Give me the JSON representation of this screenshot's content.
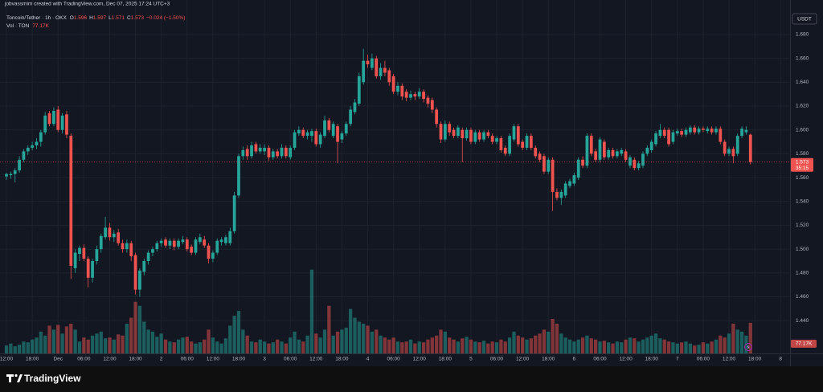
{
  "header": {
    "credit": "jobvassmim created with TradingView.com, Dec 07, 2025 17:24 UTC+3"
  },
  "chart_data": {
    "type": "candlestick",
    "symbol": "Toncoin/Tether · 1h · OKX",
    "legend": {
      "open_key": "O",
      "open": "1.596",
      "high_key": "H",
      "high": "1.597",
      "low_key": "L",
      "low": "1.571",
      "close_key": "C",
      "close": "1.573",
      "change": "−0.024 (−1.50%)"
    },
    "volume_legend": {
      "name": "Vol · TON",
      "value": "77.17K"
    },
    "currency": "USDT",
    "up_color": "#26a69a",
    "down_color": "#ef5350",
    "ohlc": [
      [
        1.561,
        1.564,
        1.558,
        1.563
      ],
      [
        1.562,
        1.565,
        1.559,
        1.563
      ],
      [
        1.563,
        1.568,
        1.556,
        1.566
      ],
      [
        1.566,
        1.578,
        1.564,
        1.575
      ],
      [
        1.575,
        1.584,
        1.573,
        1.582
      ],
      [
        1.582,
        1.587,
        1.579,
        1.585
      ],
      [
        1.585,
        1.59,
        1.583,
        1.587
      ],
      [
        1.587,
        1.593,
        1.584,
        1.59
      ],
      [
        1.59,
        1.6,
        1.586,
        1.598
      ],
      [
        1.598,
        1.615,
        1.596,
        1.612
      ],
      [
        1.614,
        1.616,
        1.603,
        1.605
      ],
      [
        1.605,
        1.619,
        1.603,
        1.616
      ],
      [
        1.617,
        1.62,
        1.598,
        1.6
      ],
      [
        1.6,
        1.614,
        1.597,
        1.612
      ],
      [
        1.613,
        1.616,
        1.593,
        1.596
      ],
      [
        1.595,
        1.597,
        1.475,
        1.486
      ],
      [
        1.484,
        1.5,
        1.48,
        1.497
      ],
      [
        1.496,
        1.503,
        1.49,
        1.501
      ],
      [
        1.501,
        1.504,
        1.49,
        1.492
      ],
      [
        1.492,
        1.494,
        1.468,
        1.476
      ],
      [
        1.476,
        1.492,
        1.472,
        1.49
      ],
      [
        1.49,
        1.503,
        1.487,
        1.5
      ],
      [
        1.5,
        1.513,
        1.497,
        1.511
      ],
      [
        1.51,
        1.527,
        1.508,
        1.518
      ],
      [
        1.518,
        1.522,
        1.507,
        1.51
      ],
      [
        1.51,
        1.516,
        1.506,
        1.513
      ],
      [
        1.514,
        1.517,
        1.503,
        1.505
      ],
      [
        1.505,
        1.508,
        1.497,
        1.5
      ],
      [
        1.5,
        1.508,
        1.497,
        1.505
      ],
      [
        1.505,
        1.507,
        1.49,
        1.494
      ],
      [
        1.495,
        1.497,
        1.462,
        1.466
      ],
      [
        1.466,
        1.484,
        1.46,
        1.482
      ],
      [
        1.481,
        1.492,
        1.478,
        1.49
      ],
      [
        1.49,
        1.499,
        1.487,
        1.497
      ],
      [
        1.497,
        1.502,
        1.494,
        1.5
      ],
      [
        1.5,
        1.507,
        1.498,
        1.505
      ],
      [
        1.505,
        1.509,
        1.502,
        1.507
      ],
      [
        1.508,
        1.51,
        1.501,
        1.503
      ],
      [
        1.503,
        1.509,
        1.5,
        1.507
      ],
      [
        1.507,
        1.509,
        1.499,
        1.502
      ],
      [
        1.502,
        1.509,
        1.5,
        1.507
      ],
      [
        1.506,
        1.511,
        1.504,
        1.508
      ],
      [
        1.508,
        1.51,
        1.498,
        1.5
      ],
      [
        1.502,
        1.504,
        1.495,
        1.497
      ],
      [
        1.497,
        1.51,
        1.495,
        1.508
      ],
      [
        1.506,
        1.513,
        1.504,
        1.51
      ],
      [
        1.508,
        1.511,
        1.501,
        1.503
      ],
      [
        1.503,
        1.505,
        1.488,
        1.492
      ],
      [
        1.492,
        1.499,
        1.489,
        1.497
      ],
      [
        1.497,
        1.509,
        1.495,
        1.507
      ],
      [
        1.506,
        1.51,
        1.503,
        1.508
      ],
      [
        1.505,
        1.512,
        1.503,
        1.51
      ],
      [
        1.505,
        1.518,
        1.503,
        1.515
      ],
      [
        1.515,
        1.548,
        1.513,
        1.545
      ],
      [
        1.545,
        1.58,
        1.543,
        1.578
      ],
      [
        1.578,
        1.586,
        1.575,
        1.583
      ],
      [
        1.584,
        1.587,
        1.575,
        1.578
      ],
      [
        1.578,
        1.59,
        1.576,
        1.587
      ],
      [
        1.588,
        1.59,
        1.58,
        1.582
      ],
      [
        1.582,
        1.588,
        1.58,
        1.585
      ],
      [
        1.582,
        1.588,
        1.579,
        1.585
      ],
      [
        1.585,
        1.587,
        1.574,
        1.577
      ],
      [
        1.577,
        1.584,
        1.575,
        1.582
      ],
      [
        1.582,
        1.584,
        1.576,
        1.578
      ],
      [
        1.578,
        1.588,
        1.576,
        1.585
      ],
      [
        1.585,
        1.587,
        1.576,
        1.578
      ],
      [
        1.577,
        1.587,
        1.575,
        1.585
      ],
      [
        1.585,
        1.6,
        1.583,
        1.598
      ],
      [
        1.597,
        1.603,
        1.595,
        1.6
      ],
      [
        1.6,
        1.602,
        1.593,
        1.595
      ],
      [
        1.595,
        1.6,
        1.592,
        1.598
      ],
      [
        1.595,
        1.601,
        1.59,
        1.599
      ],
      [
        1.599,
        1.601,
        1.586,
        1.588
      ],
      [
        1.588,
        1.598,
        1.585,
        1.596
      ],
      [
        1.595,
        1.612,
        1.593,
        1.608
      ],
      [
        1.608,
        1.61,
        1.598,
        1.6
      ],
      [
        1.595,
        1.607,
        1.593,
        1.605
      ],
      [
        1.603,
        1.605,
        1.572,
        1.59
      ],
      [
        1.592,
        1.599,
        1.589,
        1.597
      ],
      [
        1.597,
        1.607,
        1.595,
        1.605
      ],
      [
        1.605,
        1.62,
        1.603,
        1.617
      ],
      [
        1.615,
        1.626,
        1.613,
        1.623
      ],
      [
        1.622,
        1.648,
        1.62,
        1.645
      ],
      [
        1.64,
        1.668,
        1.638,
        1.658
      ],
      [
        1.658,
        1.663,
        1.652,
        1.655
      ],
      [
        1.652,
        1.664,
        1.65,
        1.66
      ],
      [
        1.66,
        1.662,
        1.643,
        1.645
      ],
      [
        1.645,
        1.656,
        1.642,
        1.652
      ],
      [
        1.652,
        1.658,
        1.645,
        1.648
      ],
      [
        1.65,
        1.652,
        1.637,
        1.64
      ],
      [
        1.645,
        1.647,
        1.63,
        1.632
      ],
      [
        1.632,
        1.64,
        1.629,
        1.637
      ],
      [
        1.637,
        1.639,
        1.625,
        1.628
      ],
      [
        1.632,
        1.634,
        1.624,
        1.627
      ],
      [
        1.627,
        1.633,
        1.625,
        1.63
      ],
      [
        1.63,
        1.632,
        1.625,
        1.628
      ],
      [
        1.628,
        1.635,
        1.626,
        1.632
      ],
      [
        1.632,
        1.634,
        1.623,
        1.626
      ],
      [
        1.627,
        1.629,
        1.619,
        1.622
      ],
      [
        1.625,
        1.627,
        1.614,
        1.617
      ],
      [
        1.617,
        1.619,
        1.602,
        1.605
      ],
      [
        1.605,
        1.607,
        1.589,
        1.592
      ],
      [
        1.592,
        1.608,
        1.59,
        1.605
      ],
      [
        1.605,
        1.607,
        1.595,
        1.598
      ],
      [
        1.6,
        1.602,
        1.593,
        1.595
      ],
      [
        1.595,
        1.604,
        1.593,
        1.602
      ],
      [
        1.6,
        1.602,
        1.573,
        1.593
      ],
      [
        1.593,
        1.602,
        1.591,
        1.6
      ],
      [
        1.6,
        1.602,
        1.588,
        1.59
      ],
      [
        1.59,
        1.6,
        1.588,
        1.598
      ],
      [
        1.598,
        1.6,
        1.59,
        1.592
      ],
      [
        1.592,
        1.6,
        1.59,
        1.598
      ],
      [
        1.598,
        1.6,
        1.593,
        1.595
      ],
      [
        1.595,
        1.597,
        1.588,
        1.59
      ],
      [
        1.59,
        1.595,
        1.588,
        1.593
      ],
      [
        1.593,
        1.595,
        1.581,
        1.583
      ],
      [
        1.585,
        1.587,
        1.578,
        1.58
      ],
      [
        1.58,
        1.597,
        1.578,
        1.595
      ],
      [
        1.592,
        1.605,
        1.59,
        1.603
      ],
      [
        1.603,
        1.605,
        1.586,
        1.588
      ],
      [
        1.59,
        1.592,
        1.583,
        1.585
      ],
      [
        1.585,
        1.597,
        1.583,
        1.595
      ],
      [
        1.595,
        1.597,
        1.583,
        1.585
      ],
      [
        1.585,
        1.587,
        1.576,
        1.578
      ],
      [
        1.58,
        1.582,
        1.573,
        1.575
      ],
      [
        1.578,
        1.58,
        1.563,
        1.565
      ],
      [
        1.565,
        1.577,
        1.563,
        1.575
      ],
      [
        1.575,
        1.577,
        1.532,
        1.548
      ],
      [
        1.548,
        1.551,
        1.541,
        1.543
      ],
      [
        1.543,
        1.55,
        1.537,
        1.548
      ],
      [
        1.545,
        1.557,
        1.543,
        1.555
      ],
      [
        1.553,
        1.559,
        1.551,
        1.557
      ],
      [
        1.555,
        1.564,
        1.553,
        1.562
      ],
      [
        1.56,
        1.577,
        1.558,
        1.575
      ],
      [
        1.575,
        1.578,
        1.568,
        1.57
      ],
      [
        1.57,
        1.597,
        1.568,
        1.595
      ],
      [
        1.595,
        1.597,
        1.578,
        1.58
      ],
      [
        1.582,
        1.584,
        1.573,
        1.575
      ],
      [
        1.575,
        1.594,
        1.573,
        1.592
      ],
      [
        1.59,
        1.592,
        1.575,
        1.577
      ],
      [
        1.577,
        1.585,
        1.575,
        1.583
      ],
      [
        1.583,
        1.585,
        1.576,
        1.578
      ],
      [
        1.578,
        1.584,
        1.576,
        1.582
      ],
      [
        1.58,
        1.585,
        1.578,
        1.583
      ],
      [
        1.582,
        1.584,
        1.573,
        1.575
      ],
      [
        1.57,
        1.579,
        1.568,
        1.577
      ],
      [
        1.575,
        1.577,
        1.566,
        1.568
      ],
      [
        1.568,
        1.574,
        1.566,
        1.572
      ],
      [
        1.57,
        1.582,
        1.568,
        1.58
      ],
      [
        1.58,
        1.587,
        1.578,
        1.585
      ],
      [
        1.583,
        1.592,
        1.581,
        1.59
      ],
      [
        1.588,
        1.599,
        1.586,
        1.597
      ],
      [
        1.595,
        1.605,
        1.593,
        1.6
      ],
      [
        1.6,
        1.602,
        1.593,
        1.595
      ],
      [
        1.6,
        1.602,
        1.586,
        1.588
      ],
      [
        1.59,
        1.6,
        1.588,
        1.598
      ],
      [
        1.597,
        1.601,
        1.595,
        1.599
      ],
      [
        1.599,
        1.601,
        1.594,
        1.596
      ],
      [
        1.596,
        1.602,
        1.594,
        1.6
      ],
      [
        1.598,
        1.604,
        1.596,
        1.602
      ],
      [
        1.602,
        1.604,
        1.596,
        1.598
      ],
      [
        1.598,
        1.603,
        1.596,
        1.601
      ],
      [
        1.601,
        1.603,
        1.598,
        1.6
      ],
      [
        1.599,
        1.603,
        1.597,
        1.601
      ],
      [
        1.601,
        1.603,
        1.596,
        1.598
      ],
      [
        1.598,
        1.603,
        1.596,
        1.601
      ],
      [
        1.601,
        1.603,
        1.588,
        1.59
      ],
      [
        1.59,
        1.592,
        1.578,
        1.58
      ],
      [
        1.58,
        1.586,
        1.578,
        1.584
      ],
      [
        1.584,
        1.586,
        1.572,
        1.578
      ],
      [
        1.58,
        1.597,
        1.578,
        1.595
      ],
      [
        1.595,
        1.603,
        1.593,
        1.601
      ],
      [
        1.598,
        1.603,
        1.596,
        1.6
      ],
      [
        1.596,
        1.597,
        1.571,
        1.573
      ]
    ],
    "volume": [
      20000,
      25000,
      18000,
      22000,
      30000,
      28000,
      35000,
      40000,
      55000,
      45000,
      70000,
      60000,
      72000,
      50000,
      68000,
      75000,
      60000,
      30000,
      40000,
      35000,
      45000,
      50000,
      55000,
      38000,
      40000,
      35000,
      48000,
      45000,
      75000,
      90000,
      130000,
      120000,
      80000,
      60000,
      55000,
      42000,
      50000,
      35000,
      30000,
      28000,
      35000,
      40000,
      42000,
      30000,
      25000,
      28000,
      35000,
      60000,
      40000,
      30000,
      25000,
      38000,
      70000,
      95000,
      107000,
      60000,
      45000,
      30000,
      28000,
      35000,
      30000,
      25000,
      28000,
      35000,
      30000,
      25000,
      40000,
      55000,
      35000,
      30000,
      45000,
      211000,
      50000,
      40000,
      60000,
      120000,
      45000,
      55000,
      60000,
      65000,
      112000,
      90000,
      80000,
      75000,
      70000,
      55000,
      60000,
      45000,
      40000,
      35000,
      40000,
      30000,
      28000,
      30000,
      35000,
      25000,
      30000,
      28000,
      35000,
      40000,
      45000,
      60000,
      55000,
      40000,
      35000,
      30000,
      38000,
      42000,
      35000,
      30000,
      28000,
      32000,
      25000,
      30000,
      28000,
      35000,
      30000,
      40000,
      55000,
      45000,
      40000,
      35000,
      38000,
      45000,
      50000,
      60000,
      55000,
      87000,
      75000,
      50000,
      40000,
      35000,
      30000,
      35000,
      40000,
      45000,
      38000,
      35000,
      30000,
      32000,
      28000,
      25000,
      30000,
      28000,
      35000,
      40000,
      38000,
      30000,
      35000,
      40000,
      45000,
      50000,
      38000,
      35000,
      30000,
      28000,
      25000,
      28000,
      30000,
      25000,
      20000,
      22000,
      28000,
      25000,
      30000,
      35000,
      45000,
      40000,
      50000,
      75000,
      60000,
      55000,
      45000,
      77170
    ],
    "ylim": [
      1.4125,
      1.7022
    ],
    "yticks": [
      {
        "value": 1.44,
        "label": "1.440"
      },
      {
        "value": 1.46,
        "label": "1.460"
      },
      {
        "value": 1.48,
        "label": "1.480"
      },
      {
        "value": 1.5,
        "label": "1.500"
      },
      {
        "value": 1.52,
        "label": "1.520"
      },
      {
        "value": 1.54,
        "label": "1.540"
      },
      {
        "value": 1.56,
        "label": "1.560"
      },
      {
        "value": 1.58,
        "label": "1.580"
      },
      {
        "value": 1.6,
        "label": "1.600"
      },
      {
        "value": 1.62,
        "label": "1.620"
      },
      {
        "value": 1.64,
        "label": "1.640"
      },
      {
        "value": 1.66,
        "label": "1.660"
      },
      {
        "value": 1.68,
        "label": "1.680"
      }
    ],
    "xlim": [
      -1.5,
      182.2
    ],
    "xticks": [
      {
        "value": 0,
        "label": "12:00"
      },
      {
        "value": 6,
        "label": "18:00"
      },
      {
        "value": 12,
        "label": "Dec"
      },
      {
        "value": 18,
        "label": "06:00"
      },
      {
        "value": 24,
        "label": "12:00"
      },
      {
        "value": 30,
        "label": "18:00"
      },
      {
        "value": 36,
        "label": "2"
      },
      {
        "value": 42,
        "label": "06:00"
      },
      {
        "value": 48,
        "label": "12:00"
      },
      {
        "value": 54,
        "label": "18:00"
      },
      {
        "value": 60,
        "label": "3"
      },
      {
        "value": 66,
        "label": "06:00"
      },
      {
        "value": 72,
        "label": "12:00"
      },
      {
        "value": 78,
        "label": "18:00"
      },
      {
        "value": 84,
        "label": "4"
      },
      {
        "value": 90,
        "label": "06:00"
      },
      {
        "value": 96,
        "label": "12:00"
      },
      {
        "value": 102,
        "label": "18:00"
      },
      {
        "value": 108,
        "label": "5"
      },
      {
        "value": 114,
        "label": "06:00"
      },
      {
        "value": 120,
        "label": "12:00"
      },
      {
        "value": 126,
        "label": "18:00"
      },
      {
        "value": 132,
        "label": "6"
      },
      {
        "value": 138,
        "label": "06:00"
      },
      {
        "value": 144,
        "label": "12:00"
      },
      {
        "value": 150,
        "label": "18:00"
      },
      {
        "value": 156,
        "label": "7"
      },
      {
        "value": 162,
        "label": "06:00"
      },
      {
        "value": 168,
        "label": "12:00"
      },
      {
        "value": 174,
        "label": "18:00"
      },
      {
        "value": 180,
        "label": "8"
      }
    ],
    "volume_lim": [
      0,
      870000
    ],
    "last_price": 1.573,
    "countdown": "35:15",
    "volume_axis_label": {
      "value": 77170,
      "label": "77.17K"
    },
    "grid": true
  },
  "footer": {
    "brand": "TradingView"
  }
}
